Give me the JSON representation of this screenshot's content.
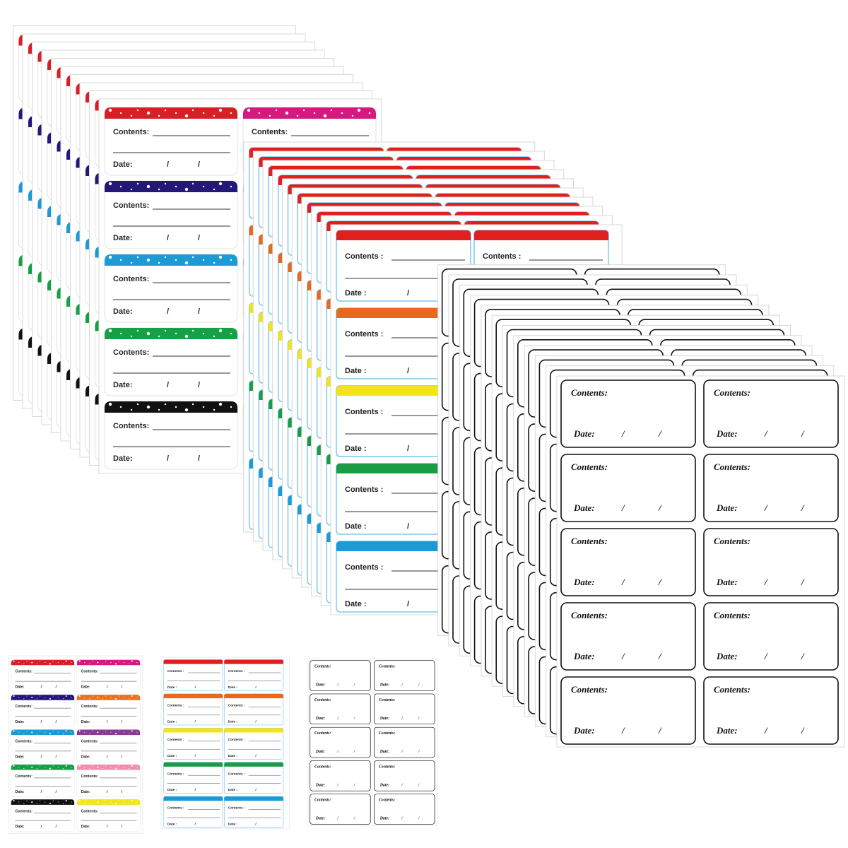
{
  "sheets": [
    {
      "style": "stars",
      "contents_label": "Contents:",
      "date_label": "Date:",
      "slash": "/",
      "colors": [
        [
          "#d71f26",
          "#d6197e"
        ],
        [
          "#23177a",
          "#e8731f"
        ],
        [
          "#1b9ad6",
          "#8a3a93"
        ],
        [
          "#16a046",
          "#ef8fb0"
        ],
        [
          "#111111",
          "#f4e41a"
        ]
      ]
    },
    {
      "style": "bands",
      "contents_label": "Contents :",
      "date_label": "Date :",
      "slash": "/",
      "colors": [
        [
          "#e0201f",
          "#e0201f"
        ],
        [
          "#e8681c",
          "#e8681c"
        ],
        [
          "#f5e31a",
          "#f5e31a"
        ],
        [
          "#1b9b45",
          "#1b9b45"
        ],
        [
          "#1a9ad7",
          "#1a9ad7"
        ]
      ]
    },
    {
      "style": "outline",
      "contents_label": "Contents:",
      "date_label": "Date:",
      "slash": "/",
      "colors": [
        [
          "#111111",
          "#111111"
        ],
        [
          "#111111",
          "#111111"
        ],
        [
          "#111111",
          "#111111"
        ],
        [
          "#111111",
          "#111111"
        ],
        [
          "#111111",
          "#111111"
        ]
      ]
    }
  ]
}
